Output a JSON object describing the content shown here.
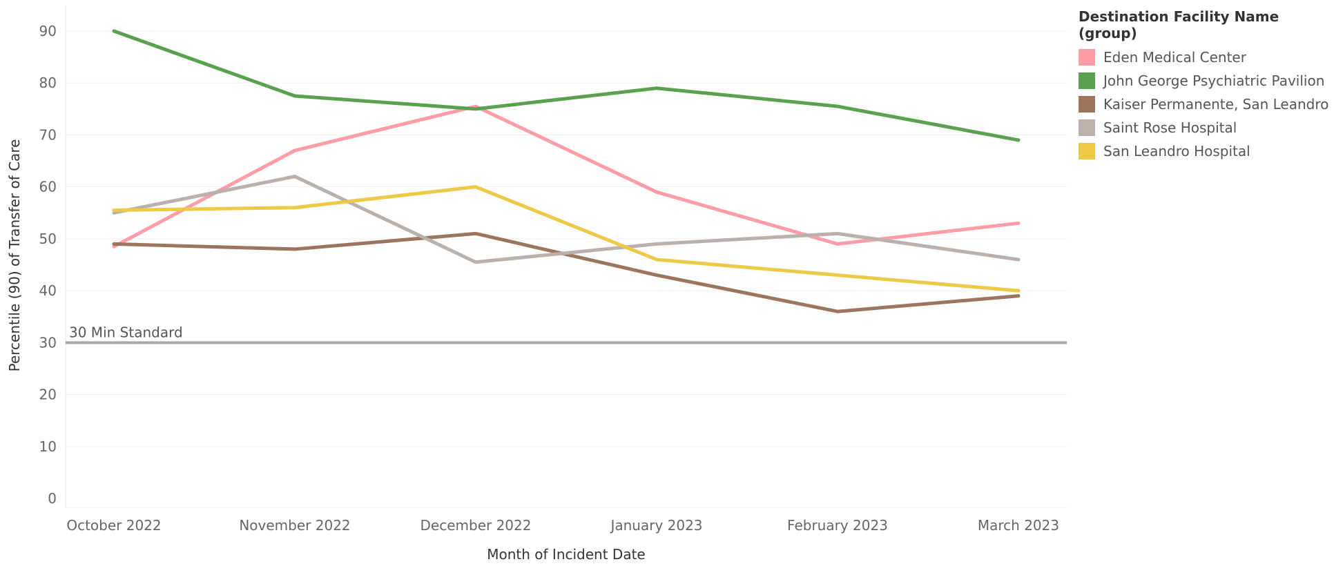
{
  "chart_data": {
    "type": "line",
    "xlabel": "Month of Incident Date",
    "ylabel": "Percentile (90) of Transfer of Care",
    "ylim": [
      0,
      90
    ],
    "yticks": [
      0,
      10,
      20,
      30,
      40,
      50,
      60,
      70,
      80,
      90
    ],
    "grid": true,
    "categories": [
      "October 2022",
      "November 2022",
      "December 2022",
      "January 2023",
      "February 2023",
      "March 2023"
    ],
    "reference_line": {
      "value": 30,
      "label": "30 Min Standard",
      "color": "#a9a9a9"
    },
    "legend": {
      "title": "Destination Facility Name (group)",
      "placement": "top-right"
    },
    "series": [
      {
        "name": "Eden Medical Center",
        "color": "#ff9da7",
        "values": [
          48.5,
          67,
          75.5,
          59,
          49,
          53
        ]
      },
      {
        "name": "John George Psychiatric Pavilion",
        "color": "#59a14f",
        "values": [
          90,
          77.5,
          75,
          79,
          75.5,
          69
        ]
      },
      {
        "name": "Kaiser Permanente, San Leandro",
        "color": "#9c755f",
        "values": [
          49,
          48,
          51,
          43,
          36,
          39
        ]
      },
      {
        "name": "Saint Rose Hospital",
        "color": "#bab0ac",
        "values": [
          55,
          62,
          45.5,
          49,
          51,
          46
        ]
      },
      {
        "name": "San Leandro Hospital",
        "color": "#edc948",
        "values": [
          55.5,
          56,
          60,
          46,
          43,
          40
        ]
      }
    ]
  }
}
